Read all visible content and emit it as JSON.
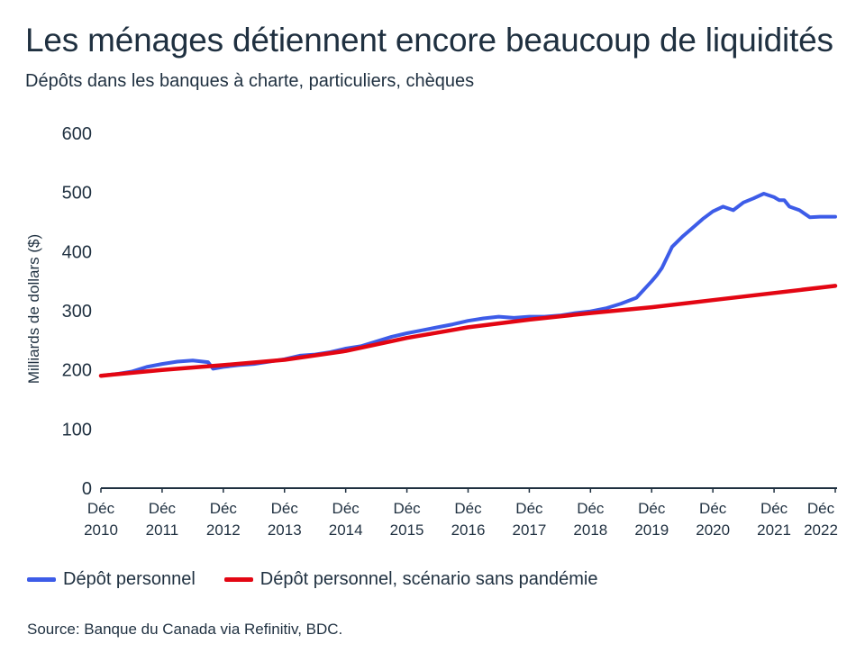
{
  "chart_data": {
    "type": "line",
    "title": "Les ménages détiennent encore beaucoup de liquidités",
    "subtitle": "Dépôts dans les banques à charte, particuliers, chèques",
    "ylabel": "Milliards de dollars ($)",
    "xlabel": "",
    "ylim": [
      0,
      600
    ],
    "yticks": [
      "0",
      "100",
      "200",
      "300",
      "400",
      "500",
      "600"
    ],
    "xlim": [
      2010.917,
      2022.917
    ],
    "xticks": [
      {
        "line1": "Déc",
        "line2": "2010"
      },
      {
        "line1": "Déc",
        "line2": "2011"
      },
      {
        "line1": "Déc",
        "line2": "2012"
      },
      {
        "line1": "Déc",
        "line2": "2013"
      },
      {
        "line1": "Déc",
        "line2": "2014"
      },
      {
        "line1": "Déc",
        "line2": "2015"
      },
      {
        "line1": "Déc",
        "line2": "2016"
      },
      {
        "line1": "Déc",
        "line2": "2017"
      },
      {
        "line1": "Déc",
        "line2": "2018"
      },
      {
        "line1": "Déc",
        "line2": "2019"
      },
      {
        "line1": "Déc",
        "line2": "2020"
      },
      {
        "line1": "Déc",
        "line2": "2021"
      },
      {
        "line1": "Déc",
        "line2": "2022"
      }
    ],
    "grid": false,
    "legend_position": "bottom",
    "series": [
      {
        "name": "Dépôt personnel",
        "color": "#3d5ce8",
        "x": [
          2010.917,
          2011.167,
          2011.417,
          2011.667,
          2011.917,
          2012.167,
          2012.417,
          2012.667,
          2012.75,
          2012.917,
          2013.167,
          2013.417,
          2013.667,
          2013.917,
          2014.167,
          2014.417,
          2014.667,
          2014.917,
          2015.167,
          2015.417,
          2015.667,
          2015.917,
          2016.167,
          2016.417,
          2016.667,
          2016.917,
          2017.167,
          2017.417,
          2017.667,
          2017.917,
          2018.167,
          2018.417,
          2018.667,
          2018.917,
          2019.167,
          2019.417,
          2019.667,
          2019.917,
          2020.0,
          2020.083,
          2020.25,
          2020.417,
          2020.583,
          2020.75,
          2020.917,
          2021.083,
          2021.25,
          2021.417,
          2021.583,
          2021.75,
          2021.917,
          2022.0,
          2022.083,
          2022.167,
          2022.333,
          2022.5,
          2022.667,
          2022.75,
          2022.917
        ],
        "y": [
          190,
          193,
          197,
          205,
          210,
          214,
          216,
          213,
          202,
          205,
          208,
          210,
          214,
          218,
          224,
          226,
          230,
          236,
          240,
          248,
          256,
          262,
          267,
          272,
          277,
          283,
          287,
          290,
          288,
          290,
          290,
          292,
          296,
          299,
          304,
          312,
          322,
          350,
          360,
          372,
          408,
          425,
          440,
          455,
          468,
          476,
          470,
          483,
          490,
          498,
          492,
          487,
          487,
          476,
          470,
          458,
          459,
          459,
          459
        ]
      },
      {
        "name": "Dépôt personnel, scénario sans pandémie",
        "color": "#e30613",
        "x": [
          2010.917,
          2011.917,
          2012.917,
          2013.917,
          2014.917,
          2015.917,
          2016.917,
          2017.917,
          2018.917,
          2019.917,
          2020.917,
          2021.917,
          2022.917
        ],
        "y": [
          190,
          200,
          208,
          217,
          232,
          254,
          272,
          285,
          296,
          306,
          318,
          330,
          342
        ]
      }
    ]
  },
  "source": "Source: Banque du Canada via Refinitiv, BDC."
}
